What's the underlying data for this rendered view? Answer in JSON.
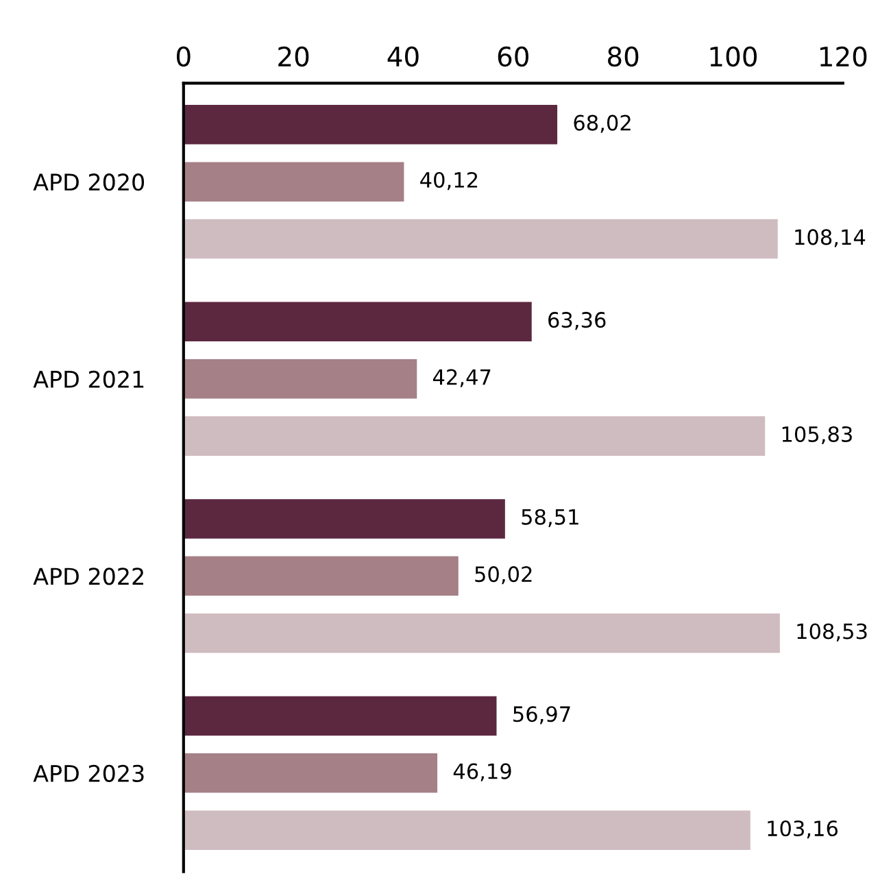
{
  "chart_data": {
    "type": "bar",
    "orientation": "horizontal",
    "categories": [
      "APD 2020",
      "APD 2021",
      "APD 2022",
      "APD 2023"
    ],
    "series": [
      {
        "color": "#5c2840",
        "values": [
          68.02,
          63.36,
          58.51,
          56.97
        ],
        "value_labels": [
          "68,02",
          "63,36",
          "58,51",
          "56,97"
        ]
      },
      {
        "color": "#a58087",
        "values": [
          40.12,
          42.47,
          50.02,
          46.19
        ],
        "value_labels": [
          "40,12",
          "42,47",
          "50,02",
          "46,19"
        ]
      },
      {
        "color": "#cfbcc0",
        "values": [
          108.14,
          105.83,
          108.53,
          103.16
        ],
        "value_labels": [
          "108,14",
          "105,83",
          "108,53",
          "103,16"
        ]
      }
    ],
    "xlim": [
      0,
      120
    ],
    "xticks": [
      0,
      20,
      40,
      60,
      80,
      100,
      120
    ],
    "grid": false
  }
}
